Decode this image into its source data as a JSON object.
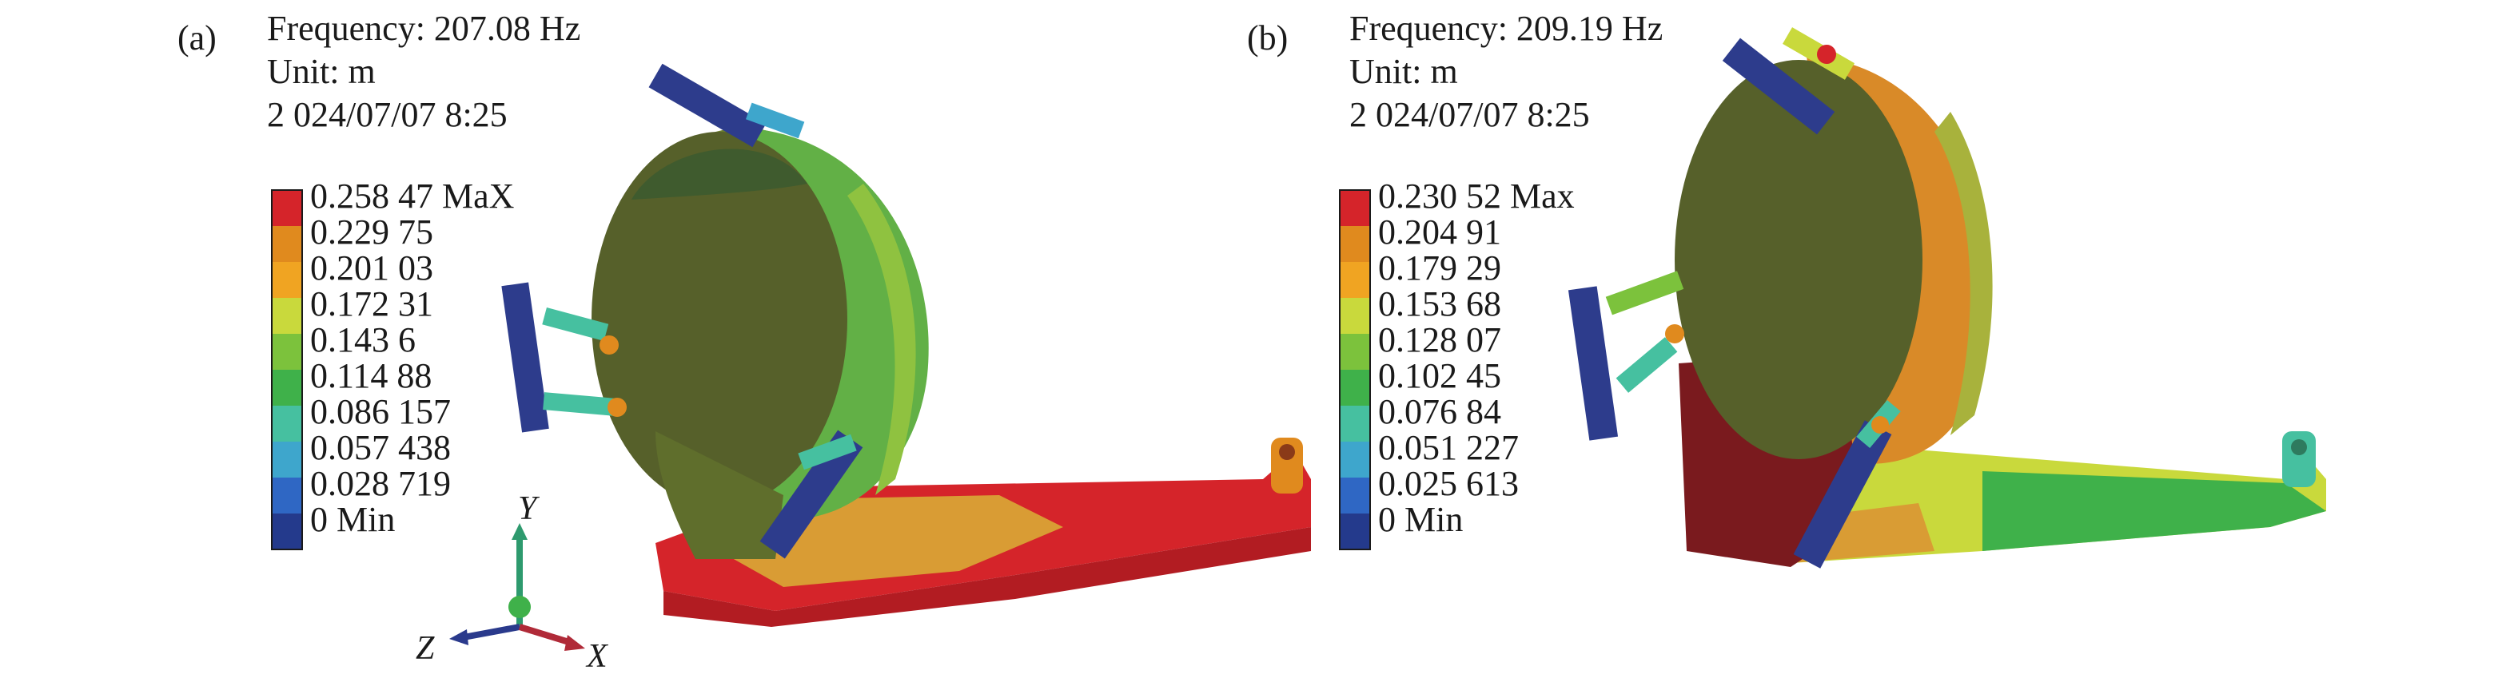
{
  "colormap": [
    "#243a8c",
    "#2f67c4",
    "#3ea6cc",
    "#46c0a0",
    "#3fb14a",
    "#7cc23c",
    "#c9d93c",
    "#f0a422",
    "#e08a1e",
    "#d5242a"
  ],
  "panels": [
    {
      "tag": "(a)",
      "frequency": "Frequency: 207.08 Hz",
      "unit": "Unit: m",
      "timestamp": "2 024/07/07 8:25",
      "legend": [
        "0.258 47 MaX",
        "0.229 75",
        "0.201 03",
        "0.172 31",
        "0.143 6",
        "0.114 88",
        "0.086 157",
        "0.057 438",
        "0.028 719",
        "0 Min"
      ]
    },
    {
      "tag": "(b)",
      "frequency": "Frequency: 209.19 Hz",
      "unit": "Unit: m",
      "timestamp": "2 024/07/07 8:25",
      "legend": [
        "0.230 52 Max",
        "0.204 91",
        "0.179 29",
        "0.153 68",
        "0.128 07",
        "0.102 45",
        "0.076 84",
        "0.051 227",
        "0.025 613",
        "0 Min"
      ]
    }
  ],
  "triad": {
    "y": "Y",
    "z": "Z",
    "x": "X",
    "y_color": "#2e9a6e",
    "z_color": "#2a3a8c",
    "x_color": "#b02a38"
  }
}
